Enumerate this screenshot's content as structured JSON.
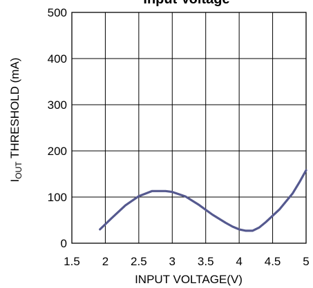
{
  "chart_data": {
    "type": "line",
    "title": "Input Voltage",
    "xlabel": "INPUT VOLTAGE(V)",
    "ylabel_prefix": "I",
    "ylabel_sub": "OUT",
    "ylabel_suffix": " THRESHOLD (mA)",
    "xlim": [
      1.5,
      5
    ],
    "ylim": [
      0,
      500
    ],
    "xticks": [
      "1.5",
      "2",
      "2.5",
      "3",
      "3.5",
      "4",
      "4.5",
      "5"
    ],
    "yticks": [
      "0",
      "100",
      "200",
      "300",
      "400",
      "500"
    ],
    "grid": true,
    "line_color": "#55598f",
    "series": [
      {
        "x": [
          1.92,
          2.1,
          2.3,
          2.5,
          2.7,
          2.9,
          3.0,
          3.2,
          3.4,
          3.6,
          3.8,
          3.9,
          4.0,
          4.1,
          4.2,
          4.3,
          4.4,
          4.6,
          4.8,
          4.9,
          5.0
        ],
        "y": [
          30,
          55,
          82,
          102,
          113,
          113,
          111,
          101,
          83,
          62,
          44,
          36,
          30,
          27,
          27,
          34,
          46,
          73,
          108,
          132,
          158
        ]
      }
    ]
  }
}
